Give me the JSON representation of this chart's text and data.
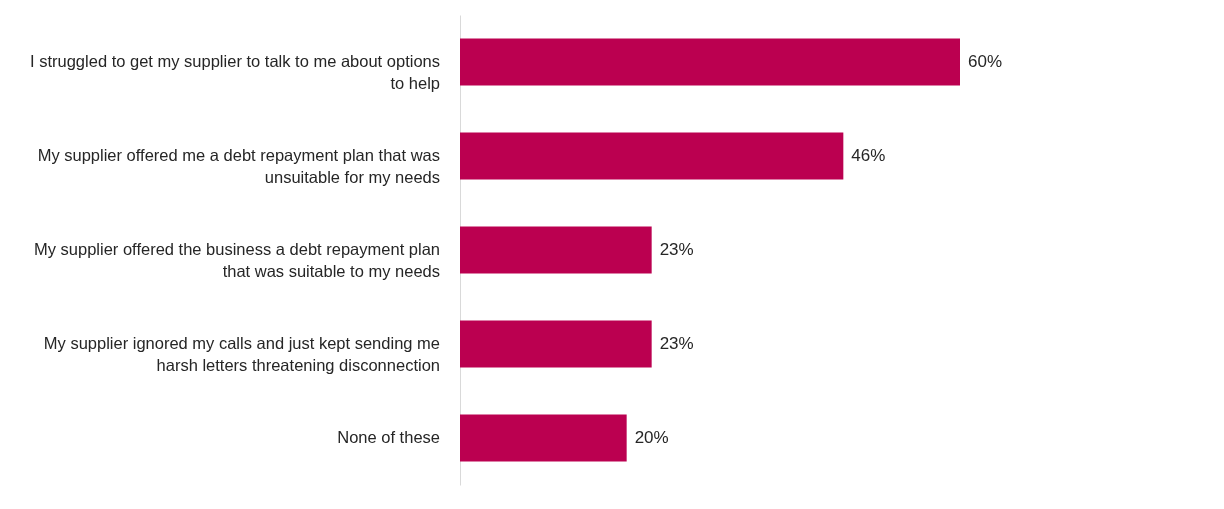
{
  "chart_data": {
    "type": "bar",
    "orientation": "horizontal",
    "categories": [
      "I struggled to get my supplier to talk to me about options to help",
      "My supplier offered me a debt repayment plan that was unsuitable for my needs",
      "My supplier offered the business a debt repayment plan that was suitable to my needs",
      "My supplier ignored my calls and just kept sending me harsh letters threatening disconnection",
      "None of these"
    ],
    "values": [
      60,
      46,
      23,
      23,
      20
    ],
    "value_labels": [
      "60%",
      "46%",
      "23%",
      "23%",
      "20%"
    ],
    "color": "#bb0050",
    "grid": false
  }
}
